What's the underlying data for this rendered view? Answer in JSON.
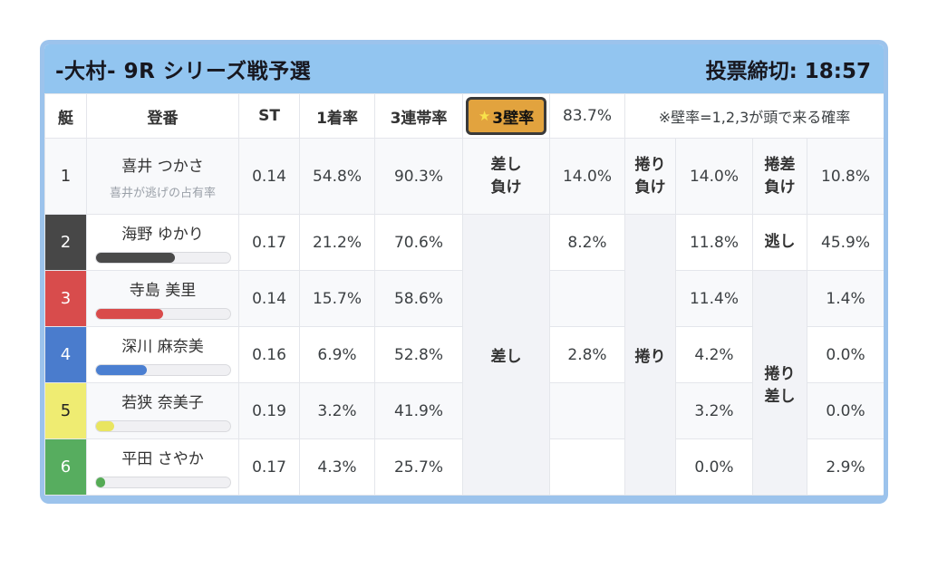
{
  "window": {
    "title": "-大村- 9R シリーズ戦予選",
    "deadline": "投票締切: 18:57"
  },
  "table": {
    "headers": {
      "boat": "艇",
      "reg": "登番",
      "st": "ST",
      "win1": "1着率",
      "ren3": "3連帯率",
      "wall_star": "★",
      "wall_label": "3壁率",
      "wall_value": "83.7%",
      "note": "※壁率=1,2,3が頭で来る確率"
    },
    "labels": {
      "sashi_make": [
        "差し",
        "負け"
      ],
      "makuri_make": [
        "捲り",
        "負け"
      ],
      "makusa_make": [
        "捲差",
        "負け"
      ],
      "nigashi": "逃し",
      "sashi": "差し",
      "makuri": "捲り",
      "makuri_sashi": [
        "捲り",
        "差し"
      ]
    },
    "rows": [
      {
        "boat": "1",
        "boat_bg": "#f8f9fb",
        "boat_fg": "#333333",
        "name": "喜井 つかさ",
        "subtitle": "喜井が逃げの占有率",
        "st": "0.14",
        "win1": "54.8%",
        "ren3": "90.3%",
        "sashi": "14.0%",
        "makuri": "14.0%",
        "makurizashi": "10.8%"
      },
      {
        "boat": "2",
        "boat_bg": "#474747",
        "boat_fg": "#ffffff",
        "name": "海野 ゆかり",
        "bar_percent": 59,
        "bar_color": "#4a4a4a",
        "st": "0.17",
        "win1": "21.2%",
        "ren3": "70.6%",
        "sashi": "8.2%",
        "makuri": "11.8%",
        "nigashi": "45.9%"
      },
      {
        "boat": "3",
        "boat_bg": "#d84c4c",
        "boat_fg": "#ffffff",
        "name": "寺島 美里",
        "bar_percent": 50,
        "bar_color": "#d94b4b",
        "st": "0.14",
        "win1": "15.7%",
        "ren3": "58.6%",
        "sashi": "",
        "makuri": "11.4%",
        "makurizashi": "1.4%"
      },
      {
        "boat": "4",
        "boat_bg": "#4a7ccd",
        "boat_fg": "#ffffff",
        "name": "深川 麻奈美",
        "bar_percent": 38,
        "bar_color": "#4b7fd1",
        "st": "0.16",
        "win1": "6.9%",
        "ren3": "52.8%",
        "sashi": "2.8%",
        "makuri": "4.2%",
        "makurizashi": "0.0%"
      },
      {
        "boat": "5",
        "boat_bg": "#efec72",
        "boat_fg": "#222222",
        "name": "若狭 奈美子",
        "bar_percent": 14,
        "bar_color": "#e9e560",
        "st": "0.19",
        "win1": "3.2%",
        "ren3": "41.9%",
        "sashi": "",
        "makuri": "3.2%",
        "makurizashi": "0.0%"
      },
      {
        "boat": "6",
        "boat_bg": "#57ad5f",
        "boat_fg": "#ffffff",
        "name": "平田 さやか",
        "bar_percent": 7,
        "bar_color": "#55ab55",
        "st": "0.17",
        "win1": "4.3%",
        "ren3": "25.7%",
        "sashi": "",
        "makuri": "0.0%",
        "makurizashi": "2.9%"
      }
    ]
  }
}
